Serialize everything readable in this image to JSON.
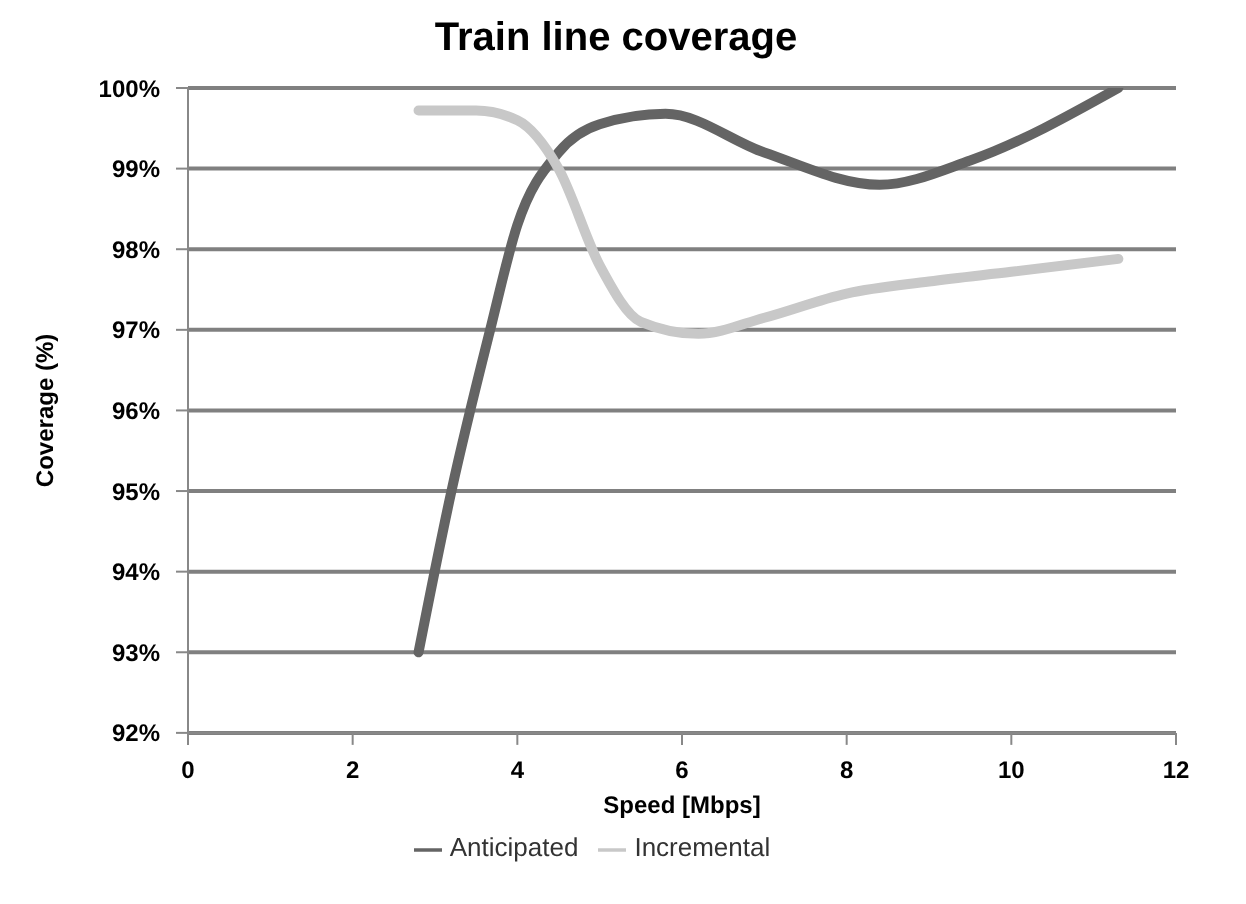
{
  "chart_data": {
    "type": "line",
    "title": "Train line coverage",
    "xlabel": "Speed [Mbps]",
    "ylabel": "Coverage (%)",
    "xlim": [
      0,
      12
    ],
    "xticks": [
      0,
      2,
      4,
      6,
      8,
      10,
      12
    ],
    "ylim": [
      92,
      100
    ],
    "yticks": [
      {
        "value": 92,
        "label": "92%"
      },
      {
        "value": 93,
        "label": "93%"
      },
      {
        "value": 94,
        "label": "94%"
      },
      {
        "value": 95,
        "label": "95%"
      },
      {
        "value": 96,
        "label": "96%"
      },
      {
        "value": 97,
        "label": "97%"
      },
      {
        "value": 98,
        "label": "98%"
      },
      {
        "value": 99,
        "label": "99%"
      },
      {
        "value": 100,
        "label": "100%"
      }
    ],
    "grid": "y",
    "legend": "bottom",
    "marker": "none",
    "series": [
      {
        "name": "Anticipated",
        "color": "#646464",
        "x": [
          2.8,
          3.2,
          3.67,
          4.0,
          4.5,
          5.0,
          5.8,
          7.0,
          8.4,
          9.5,
          11.3
        ],
        "values": [
          93,
          95,
          97,
          98.3,
          99.2,
          99.55,
          99.68,
          99.2,
          98.8,
          99.1,
          100
        ]
      },
      {
        "name": "Incremental",
        "color": "#c8c8c8",
        "x": [
          2.8,
          3.5,
          4.0,
          4.5,
          5.0,
          5.5,
          6.2,
          7.0,
          8.0,
          9.0,
          10.0,
          11.3
        ],
        "values": [
          99.72,
          99.72,
          99.6,
          99.0,
          97.8,
          97.1,
          96.95,
          97.15,
          97.45,
          97.6,
          97.72,
          97.88
        ]
      }
    ]
  }
}
